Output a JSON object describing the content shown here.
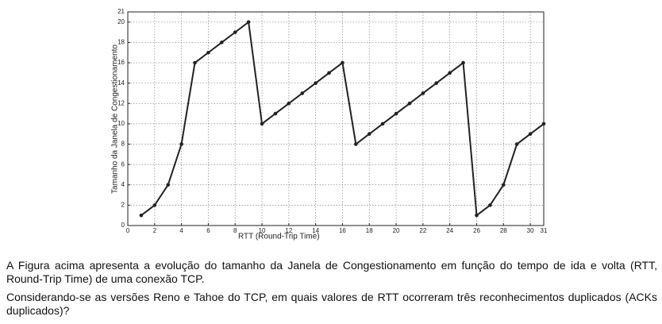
{
  "chart_data": {
    "type": "line",
    "x_label": "RTT (Round-Trip Time)",
    "y_label": "Tamanho da Janela de Congestionamento",
    "x": [
      1,
      2,
      3,
      4,
      5,
      6,
      7,
      8,
      9,
      10,
      11,
      12,
      13,
      14,
      15,
      16,
      17,
      18,
      19,
      20,
      21,
      22,
      23,
      24,
      25,
      26,
      27,
      28,
      29,
      30,
      31
    ],
    "series": [
      {
        "color": "#222222",
        "values": [
          1,
          2,
          4,
          8,
          16,
          17,
          18,
          19,
          20,
          10,
          11,
          12,
          13,
          14,
          15,
          16,
          8,
          9,
          10,
          11,
          12,
          13,
          14,
          15,
          16,
          1,
          2,
          4,
          8,
          9,
          10
        ]
      }
    ],
    "xlim": [
      0,
      31
    ],
    "xticks": [
      0,
      2,
      4,
      6,
      8,
      10,
      12,
      14,
      16,
      18,
      20,
      22,
      24,
      26,
      28,
      30,
      31
    ],
    "ylim": [
      0,
      21
    ],
    "yticks": [
      0,
      2,
      4,
      6,
      8,
      10,
      12,
      14,
      16,
      18,
      20,
      21
    ],
    "grid": true
  },
  "text": {
    "paragraphs": [
      "A Figura acima apresenta a evolução do tamanho da Janela de Congestionamento em função do tempo de ida e volta (RTT, Round-Trip Time) de uma conexão TCP.",
      "Considerando-se as versões Reno e Tahoe do TCP, em quais valores de RTT ocorreram três reconhecimentos duplicados (ACKs duplicados)?"
    ]
  }
}
